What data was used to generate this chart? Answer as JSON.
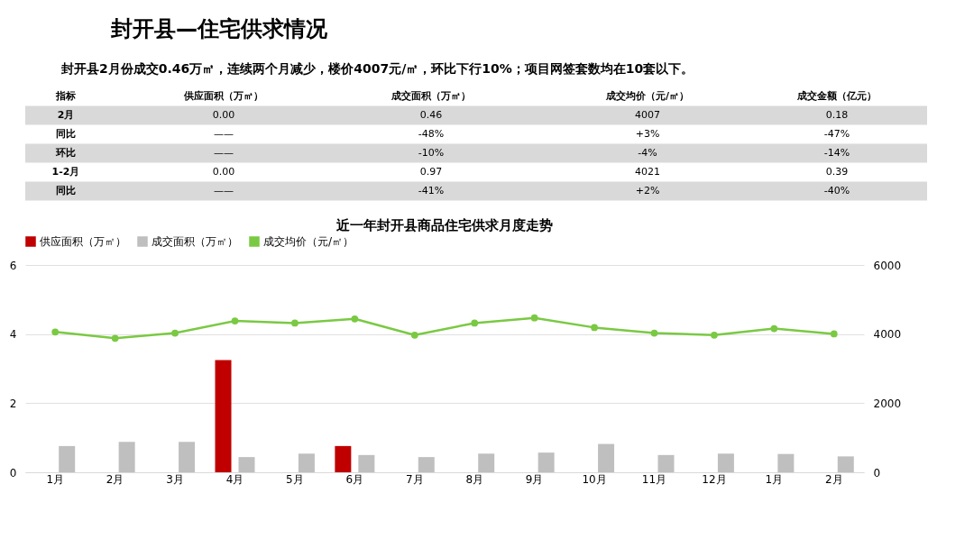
{
  "chart_data": [
    {
      "type": "other",
      "title": "封开县—住宅供求情况",
      "subtitle": "封开县2月份成交0.46万㎡，连续两个月减少，楼价4007元/㎡，环比下行10%；项目网签套数均在10套以下。",
      "annotations": [
        "指标",
        "供应面积（万㎡）",
        "成交面积（万㎡）",
        "成交均价（元/㎡）",
        "成交金额（亿元）",
        "2月",
        "0.00",
        "0.46",
        "4007",
        "0.18",
        "同比",
        "——",
        "-48%",
        "+3%",
        "-47%",
        "环比",
        "——",
        "-10%",
        "-4%",
        "-14%",
        "1-2月",
        "0.00",
        "0.97",
        "4021",
        "0.39",
        "同比",
        "——",
        "-41%",
        "+2%",
        "-40%"
      ]
    },
    {
      "type": "bar",
      "title": "近一年封开县商品住宅供求月度走势",
      "categories": [
        "1月",
        "2月",
        "3月",
        "4月",
        "5月",
        "6月",
        "7月",
        "8月",
        "9月",
        "10月",
        "11月",
        "12月",
        "1月",
        "2月"
      ],
      "series": [
        {
          "name": "供应面积（万㎡）",
          "type": "bar",
          "color": "#c00000",
          "values": [
            0,
            0,
            0,
            3.25,
            0,
            0.76,
            0,
            0,
            0,
            0,
            0,
            0,
            0,
            0
          ]
        },
        {
          "name": "成交面积（万㎡）",
          "type": "bar",
          "color": "#bfbfbf",
          "values": [
            0.76,
            0.88,
            0.88,
            0.44,
            0.54,
            0.5,
            0.44,
            0.54,
            0.57,
            0.82,
            0.5,
            0.54,
            0.53,
            0.46
          ]
        },
        {
          "name": "成交均价（元/㎡）",
          "type": "line",
          "axis": "y2",
          "color": "#7ac943",
          "values": [
            4060,
            3880,
            4030,
            4380,
            4320,
            4440,
            3970,
            4320,
            4470,
            4190,
            4030,
            3970,
            4160,
            4007
          ]
        }
      ],
      "ylim": [
        0,
        6
      ],
      "yticks": [
        0,
        2,
        4,
        6
      ],
      "y2lim": [
        0,
        6000
      ],
      "y2ticks": [
        0,
        2000,
        4000,
        6000
      ],
      "grid": "y",
      "legend": "top",
      "marker": "circle",
      "line_style": "solid"
    }
  ]
}
